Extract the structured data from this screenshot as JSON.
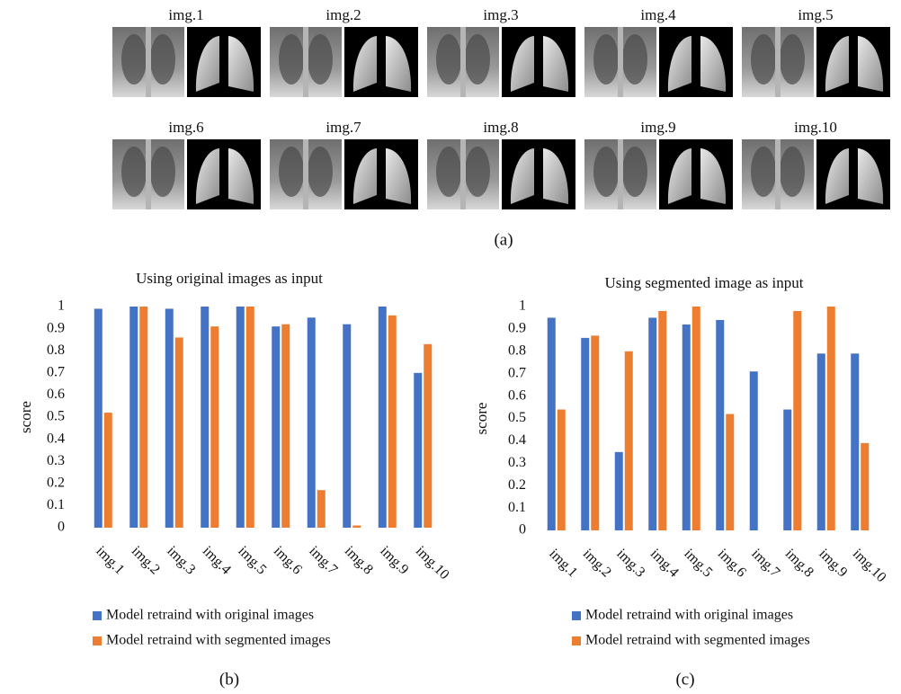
{
  "figure": {
    "panels": [
      "img.1",
      "img.2",
      "img.3",
      "img.4",
      "img.5",
      "img.6",
      "img.7",
      "img.8",
      "img.9",
      "img.10"
    ],
    "caption": "(a)"
  },
  "chart_data": [
    {
      "type": "bar",
      "title": "Using original images as input",
      "ylabel": "score",
      "caption": "(b)",
      "categories": [
        "img.1",
        "img.2",
        "img.3",
        "img.4",
        "img.5",
        "img.6",
        "img.7",
        "img.8",
        "img.9",
        "img.10"
      ],
      "series": [
        {
          "name": "Model retraind with original images",
          "color": "#4472c4",
          "values": [
            0.99,
            1.0,
            0.99,
            1.0,
            1.0,
            0.91,
            0.95,
            0.92,
            1.0,
            0.7
          ]
        },
        {
          "name": "Model retraind with segmented images",
          "color": "#ed7d31",
          "values": [
            0.52,
            1.0,
            0.86,
            0.91,
            1.0,
            0.92,
            0.17,
            0.01,
            0.96,
            0.83
          ]
        }
      ],
      "ylim": [
        0,
        1
      ],
      "yticks": [
        0,
        0.1,
        0.2,
        0.3,
        0.4,
        0.5,
        0.6,
        0.7,
        0.8,
        0.9,
        1
      ],
      "grid": false
    },
    {
      "type": "bar",
      "title": "Using segmented image as input",
      "ylabel": "score",
      "caption": "(c)",
      "categories": [
        "img.1",
        "img.2",
        "img.3",
        "img.4",
        "img.5",
        "img.6",
        "img.7",
        "img.8",
        "img.9",
        "img.10"
      ],
      "series": [
        {
          "name": "Model retraind with original images",
          "color": "#4472c4",
          "values": [
            0.95,
            0.86,
            0.35,
            0.95,
            0.92,
            0.94,
            0.71,
            0.54,
            0.79,
            0.79
          ]
        },
        {
          "name": "Model retraind with segmented images",
          "color": "#ed7d31",
          "values": [
            0.54,
            0.87,
            0.8,
            0.98,
            1.0,
            0.52,
            0,
            0.98,
            1.0,
            0.39
          ]
        }
      ],
      "ylim": [
        0,
        1
      ],
      "yticks": [
        0,
        0.1,
        0.2,
        0.3,
        0.4,
        0.5,
        0.6,
        0.7,
        0.8,
        0.9,
        1
      ],
      "grid": false
    }
  ]
}
